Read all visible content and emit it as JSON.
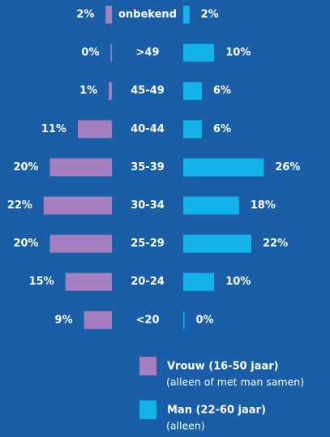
{
  "chart_data": {
    "type": "butterfly-bar",
    "categories": [
      "onbekend",
      ">49",
      "45-49",
      "40-44",
      "35-39",
      "30-34",
      "25-29",
      "20-24",
      "<20"
    ],
    "series": [
      {
        "name": "Vrouw (16-50 jaar)",
        "note": "(alleen of met man samen)",
        "color": "#a67fc1",
        "values": [
          2,
          0,
          1,
          11,
          20,
          22,
          20,
          15,
          9
        ],
        "value_labels": [
          "2%",
          "0%",
          "1%",
          "11%",
          "20%",
          "22%",
          "20%",
          "15%",
          "9%"
        ]
      },
      {
        "name": "Man (22-60 jaar)",
        "note": "(alleen)",
        "color": "#13b3e9",
        "values": [
          2,
          10,
          6,
          6,
          26,
          18,
          22,
          10,
          0
        ],
        "value_labels": [
          "2%",
          "10%",
          "6%",
          "6%",
          "26%",
          "18%",
          "22%",
          "10%",
          "0%"
        ]
      }
    ]
  }
}
